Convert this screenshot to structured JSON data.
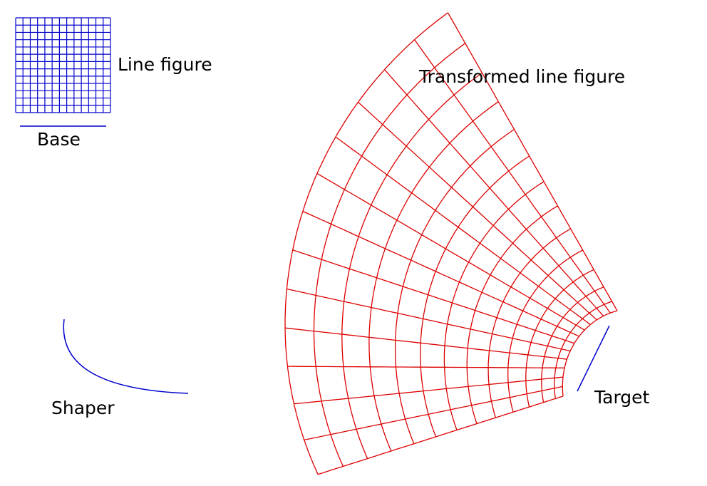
{
  "labels": {
    "line_figure": "Line figure",
    "base": "Base",
    "shaper": "Shaper",
    "target": "Target",
    "transformed": "Transformed line figure"
  }
}
